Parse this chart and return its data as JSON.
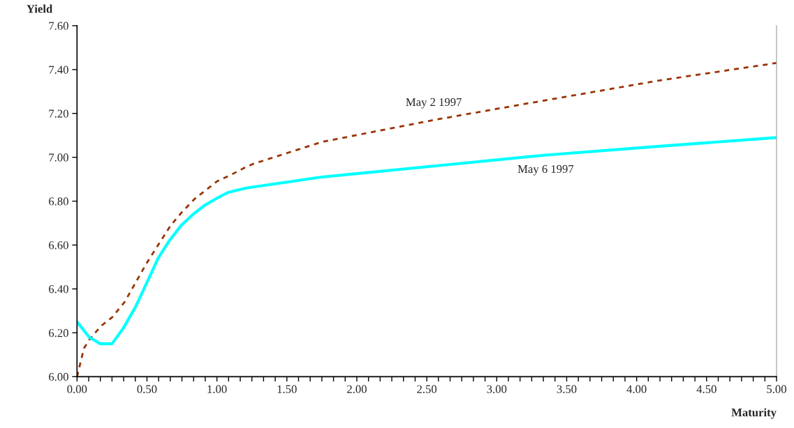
{
  "chart_data": {
    "type": "line",
    "xlabel": "Maturity",
    "ylabel": "Yield",
    "xlim": [
      0,
      5
    ],
    "ylim": [
      6.0,
      7.6
    ],
    "xticks": [
      {
        "value": 0,
        "label": "0.00"
      },
      {
        "value": 0.0833,
        "label": null
      },
      {
        "value": 0.1667,
        "label": null
      },
      {
        "value": 0.25,
        "label": null
      },
      {
        "value": 0.3333,
        "label": null
      },
      {
        "value": 0.4167,
        "label": null
      },
      {
        "value": 0.5,
        "label": "0.50"
      },
      {
        "value": 0.5833,
        "label": null
      },
      {
        "value": 0.6667,
        "label": null
      },
      {
        "value": 0.75,
        "label": null
      },
      {
        "value": 0.8333,
        "label": null
      },
      {
        "value": 0.9167,
        "label": null
      },
      {
        "value": 1,
        "label": "1.00"
      },
      {
        "value": 1.0833,
        "label": null
      },
      {
        "value": 1.1667,
        "label": null
      },
      {
        "value": 1.25,
        "label": null
      },
      {
        "value": 1.3333,
        "label": null
      },
      {
        "value": 1.4167,
        "label": null
      },
      {
        "value": 1.5,
        "label": "1.50"
      },
      {
        "value": 1.5833,
        "label": null
      },
      {
        "value": 1.6667,
        "label": null
      },
      {
        "value": 1.75,
        "label": null
      },
      {
        "value": 1.8333,
        "label": null
      },
      {
        "value": 1.9167,
        "label": null
      },
      {
        "value": 2,
        "label": "2.00"
      },
      {
        "value": 2.0833,
        "label": null
      },
      {
        "value": 2.1667,
        "label": null
      },
      {
        "value": 2.25,
        "label": null
      },
      {
        "value": 2.3333,
        "label": null
      },
      {
        "value": 2.4167,
        "label": null
      },
      {
        "value": 2.5,
        "label": "2.50"
      },
      {
        "value": 2.5833,
        "label": null
      },
      {
        "value": 2.6667,
        "label": null
      },
      {
        "value": 2.75,
        "label": null
      },
      {
        "value": 2.8333,
        "label": null
      },
      {
        "value": 2.9167,
        "label": null
      },
      {
        "value": 3,
        "label": "3.00"
      },
      {
        "value": 3.0833,
        "label": null
      },
      {
        "value": 3.1667,
        "label": null
      },
      {
        "value": 3.25,
        "label": null
      },
      {
        "value": 3.3333,
        "label": null
      },
      {
        "value": 3.4167,
        "label": null
      },
      {
        "value": 3.5,
        "label": "3.50"
      },
      {
        "value": 3.5833,
        "label": null
      },
      {
        "value": 3.6667,
        "label": null
      },
      {
        "value": 3.75,
        "label": null
      },
      {
        "value": 3.8333,
        "label": null
      },
      {
        "value": 3.9167,
        "label": null
      },
      {
        "value": 4,
        "label": "4.00"
      },
      {
        "value": 4.0833,
        "label": null
      },
      {
        "value": 4.1667,
        "label": null
      },
      {
        "value": 4.25,
        "label": null
      },
      {
        "value": 4.3333,
        "label": null
      },
      {
        "value": 4.4167,
        "label": null
      },
      {
        "value": 4.5,
        "label": "4.50"
      },
      {
        "value": 4.5833,
        "label": null
      },
      {
        "value": 4.6667,
        "label": null
      },
      {
        "value": 4.75,
        "label": null
      },
      {
        "value": 4.8333,
        "label": null
      },
      {
        "value": 4.9167,
        "label": null
      },
      {
        "value": 5,
        "label": "5.00"
      }
    ],
    "yticks": [
      {
        "value": 6.0,
        "label": "6.00"
      },
      {
        "value": 6.2,
        "label": "6.20"
      },
      {
        "value": 6.4,
        "label": "6.40"
      },
      {
        "value": 6.6,
        "label": "6.60"
      },
      {
        "value": 6.8,
        "label": "6.80"
      },
      {
        "value": 7.0,
        "label": "7.00"
      },
      {
        "value": 7.2,
        "label": "7.20"
      },
      {
        "value": 7.4,
        "label": "7.40"
      },
      {
        "value": 7.6,
        "label": "7.60"
      }
    ],
    "grid": false,
    "legend": false,
    "series": [
      {
        "name": "May 2 1997",
        "color": "#993300",
        "line_style": "dashed",
        "x": [
          0,
          0.05,
          0.09,
          0.17,
          0.25,
          0.34,
          0.42,
          0.5,
          0.59,
          0.67,
          0.75,
          0.84,
          0.92,
          1.0,
          1.1,
          1.19,
          1.26,
          1.75,
          2.55,
          3.35,
          4.16,
          5.0
        ],
        "values": [
          6.0,
          6.13,
          6.17,
          6.23,
          6.27,
          6.34,
          6.43,
          6.52,
          6.61,
          6.69,
          6.75,
          6.81,
          6.85,
          6.89,
          6.92,
          6.95,
          6.97,
          7.07,
          7.17,
          7.26,
          7.35,
          7.43
        ]
      },
      {
        "name": "May 6 1997",
        "color": "#00ffff",
        "line_style": "solid",
        "x": [
          0,
          0.087,
          0.166,
          0.25,
          0.33,
          0.42,
          0.5,
          0.58,
          0.66,
          0.745,
          0.83,
          0.91,
          0.99,
          1.08,
          1.21,
          1.75,
          2.55,
          3.35,
          4.16,
          5.0
        ],
        "values": [
          6.25,
          6.18,
          6.15,
          6.15,
          6.22,
          6.32,
          6.43,
          6.54,
          6.62,
          6.69,
          6.74,
          6.78,
          6.81,
          6.84,
          6.86,
          6.91,
          6.96,
          7.01,
          7.05,
          7.09
        ]
      }
    ]
  }
}
